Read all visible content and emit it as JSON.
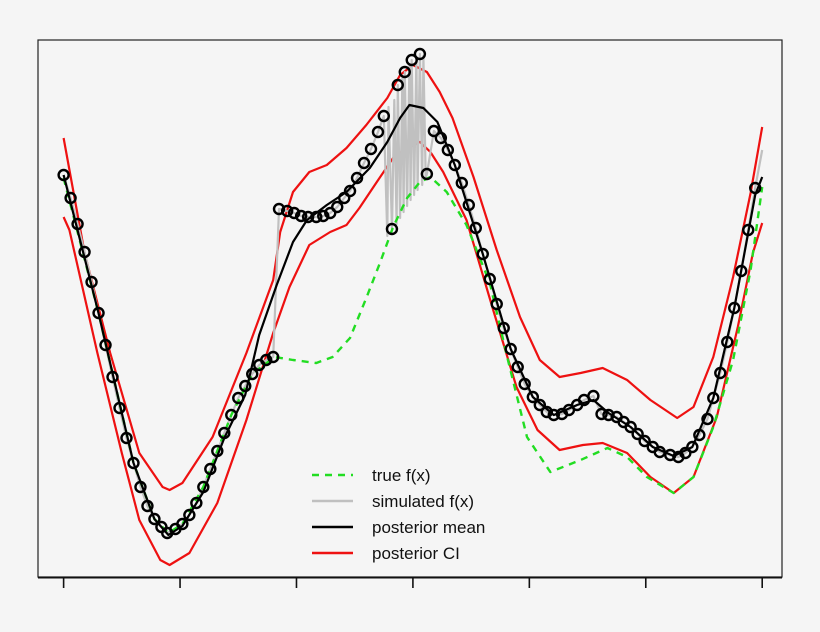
{
  "chart_data": {
    "type": "line",
    "title": "",
    "xlabel": "",
    "ylabel": "",
    "xlim": [
      -0.22,
      6.17
    ],
    "ylim": [
      -1.37,
      4.0
    ],
    "x_ticks": [
      0,
      1,
      2,
      3,
      4,
      5,
      6
    ],
    "x_tick_labels_shown": false,
    "y_ticks_shown": false,
    "grid": false,
    "legend_position": "bottom-center",
    "colors": {
      "true": "#22dd22",
      "simulated": "#c0c0c0",
      "mean": "#000000",
      "ci": "#ee1111",
      "points": "#000000",
      "background": "#f5f5f5"
    },
    "legend": [
      {
        "label": "true f(x)",
        "style": "dashed",
        "color": "#22dd22"
      },
      {
        "label": "simulated f(x)",
        "style": "solid",
        "color": "#c0c0c0"
      },
      {
        "label": "posterior mean",
        "style": "solid",
        "color": "#000000"
      },
      {
        "label": "posterior CI",
        "style": "solid",
        "color": "#ee1111"
      }
    ],
    "series": [
      {
        "name": "true f(x)",
        "x": [
          0,
          0.3,
          0.6,
          0.78,
          0.9,
          1.02,
          1.2,
          1.44,
          1.62,
          1.81,
          1.97,
          2.17,
          2.31,
          2.46,
          2.6,
          2.72,
          2.83,
          2.95,
          3.06,
          3.15,
          3.29,
          3.46,
          3.66,
          3.81,
          3.98,
          4.18,
          4.44,
          4.67,
          4.84,
          5.01,
          5.24,
          5.41,
          5.58,
          5.75,
          5.9,
          6.0
        ],
        "y": [
          2.62,
          1.27,
          -0.23,
          -0.79,
          -0.93,
          -0.84,
          -0.47,
          0.25,
          0.66,
          0.83,
          0.8,
          0.77,
          0.83,
          1.02,
          1.42,
          1.78,
          2.13,
          2.42,
          2.58,
          2.63,
          2.48,
          2.15,
          1.57,
          0.83,
          0.03,
          -0.32,
          -0.2,
          -0.08,
          -0.17,
          -0.37,
          -0.53,
          -0.37,
          0.13,
          0.8,
          1.7,
          2.53
        ]
      },
      {
        "name": "simulated f(x)",
        "x": [
          0,
          0.06,
          0.12,
          0.18,
          0.24,
          0.3,
          0.36,
          0.42,
          0.48,
          0.54,
          0.6,
          0.66,
          0.72,
          0.78,
          0.84,
          0.89,
          0.96,
          1.02,
          1.08,
          1.14,
          1.2,
          1.26,
          1.32,
          1.38,
          1.44,
          1.5,
          1.56,
          1.62,
          1.68,
          1.74,
          1.8,
          1.85,
          1.92,
          1.98,
          2.04,
          2.1,
          2.17,
          2.23,
          2.29,
          2.35,
          2.41,
          2.46,
          2.52,
          2.58,
          2.64,
          2.7,
          2.75,
          2.78,
          2.79,
          2.82,
          2.84,
          2.86,
          2.87,
          2.89,
          2.91,
          2.92,
          2.93,
          2.95,
          2.97,
          2.98,
          2.99,
          3.01,
          3.03,
          3.04,
          3.06,
          3.08,
          3.09,
          3.11,
          3.12,
          3.18,
          3.24,
          3.3,
          3.36,
          3.42,
          3.48,
          3.54,
          3.6,
          3.66,
          3.72,
          3.78,
          3.84,
          3.9,
          3.96,
          4.03,
          4.09,
          4.15,
          4.21,
          4.28,
          4.34,
          4.41,
          4.47,
          4.55,
          4.62,
          4.68,
          4.75,
          4.81,
          4.87,
          4.93,
          4.99,
          5.06,
          5.12,
          5.21,
          5.28,
          5.34,
          5.4,
          5.46,
          5.53,
          5.58,
          5.64,
          5.7,
          5.76,
          5.82,
          5.88,
          5.94,
          6.0
        ],
        "y": [
          2.65,
          2.42,
          2.16,
          1.88,
          1.58,
          1.27,
          0.95,
          0.63,
          0.32,
          0.02,
          -0.23,
          -0.47,
          -0.66,
          -0.79,
          -0.87,
          -0.93,
          -0.89,
          -0.84,
          -0.75,
          -0.63,
          -0.47,
          -0.29,
          -0.11,
          0.07,
          0.25,
          0.42,
          0.54,
          0.66,
          0.75,
          0.8,
          0.83,
          2.31,
          2.29,
          2.27,
          2.24,
          2.23,
          2.23,
          2.24,
          2.27,
          2.33,
          2.42,
          2.49,
          2.62,
          2.77,
          2.91,
          3.08,
          3.24,
          2.04,
          3.33,
          2.11,
          3.4,
          2.16,
          3.55,
          2.22,
          3.62,
          2.28,
          3.68,
          2.34,
          3.74,
          2.4,
          3.8,
          2.45,
          3.83,
          2.5,
          3.86,
          2.55,
          3.84,
          2.62,
          2.66,
          3.09,
          3.02,
          2.9,
          2.75,
          2.57,
          2.35,
          2.12,
          1.86,
          1.61,
          1.36,
          1.12,
          0.91,
          0.73,
          0.56,
          0.43,
          0.35,
          0.28,
          0.25,
          0.26,
          0.3,
          0.35,
          0.4,
          0.44,
          0.26,
          0.25,
          0.23,
          0.18,
          0.13,
          0.06,
          -0.01,
          -0.07,
          -0.12,
          -0.15,
          -0.17,
          -0.13,
          -0.07,
          0.05,
          0.21,
          0.42,
          0.67,
          0.98,
          1.32,
          1.69,
          2.1,
          2.52,
          2.9
        ]
      },
      {
        "name": "posterior mean",
        "x": [
          0,
          0.3,
          0.6,
          0.78,
          0.9,
          1.02,
          1.2,
          1.38,
          1.56,
          1.68,
          1.83,
          1.97,
          2.09,
          2.26,
          2.43,
          2.63,
          2.78,
          2.89,
          2.97,
          3.09,
          3.21,
          3.36,
          3.6,
          3.84,
          4.03,
          4.21,
          4.41,
          4.55,
          4.68,
          4.87,
          5.06,
          5.24,
          5.4,
          5.58,
          5.76,
          5.94,
          6.0
        ],
        "y": [
          2.65,
          1.27,
          -0.23,
          -0.79,
          -0.95,
          -0.86,
          -0.52,
          0.02,
          0.45,
          1.05,
          1.55,
          1.98,
          2.2,
          2.35,
          2.48,
          2.72,
          2.98,
          3.22,
          3.35,
          3.32,
          3.18,
          2.75,
          1.86,
          0.91,
          0.43,
          0.25,
          0.35,
          0.4,
          0.27,
          0.13,
          -0.07,
          -0.16,
          -0.07,
          0.42,
          1.32,
          2.45,
          2.63
        ]
      },
      {
        "name": "posterior CI upper",
        "x": [
          0,
          0.18,
          0.4,
          0.65,
          0.85,
          0.91,
          1.02,
          1.28,
          1.57,
          1.8,
          1.86,
          1.97,
          2.11,
          2.26,
          2.43,
          2.6,
          2.78,
          2.89,
          3.0,
          3.12,
          3.23,
          3.34,
          3.52,
          3.72,
          3.92,
          4.09,
          4.26,
          4.44,
          4.63,
          4.84,
          5.04,
          5.27,
          5.41,
          5.58,
          5.75,
          5.9,
          6.0
        ],
        "y": [
          3.02,
          1.87,
          0.87,
          -0.13,
          -0.47,
          -0.5,
          -0.43,
          0.03,
          0.87,
          1.6,
          2.08,
          2.48,
          2.68,
          2.75,
          2.92,
          3.15,
          3.42,
          3.65,
          3.75,
          3.68,
          3.48,
          3.22,
          2.63,
          1.9,
          1.23,
          0.8,
          0.63,
          0.67,
          0.72,
          0.6,
          0.4,
          0.22,
          0.33,
          0.83,
          1.63,
          2.47,
          3.13
        ]
      },
      {
        "name": "posterior CI lower",
        "x": [
          0,
          0.05,
          0.29,
          0.5,
          0.65,
          0.83,
          0.91,
          1.08,
          1.32,
          1.57,
          1.8,
          1.94,
          2.11,
          2.29,
          2.43,
          2.54,
          2.69,
          2.83,
          2.95,
          3.06,
          3.15,
          3.26,
          3.46,
          3.69,
          3.89,
          4.07,
          4.26,
          4.46,
          4.63,
          4.84,
          5.04,
          5.24,
          5.41,
          5.61,
          5.79,
          5.92,
          6.0
        ],
        "y": [
          2.23,
          2.1,
          0.87,
          -0.13,
          -0.8,
          -1.2,
          -1.25,
          -1.13,
          -0.63,
          0.2,
          1.07,
          1.53,
          1.95,
          2.08,
          2.15,
          2.32,
          2.58,
          2.82,
          2.92,
          2.98,
          2.88,
          2.68,
          2.2,
          1.3,
          0.53,
          0.1,
          -0.1,
          -0.05,
          -0.03,
          -0.13,
          -0.37,
          -0.53,
          -0.37,
          0.23,
          1.13,
          1.87,
          2.17
        ]
      }
    ],
    "points": {
      "x": [
        0,
        0.06,
        0.12,
        0.18,
        0.24,
        0.3,
        0.36,
        0.42,
        0.48,
        0.54,
        0.6,
        0.66,
        0.72,
        0.78,
        0.84,
        0.89,
        0.96,
        1.02,
        1.08,
        1.14,
        1.2,
        1.26,
        1.32,
        1.38,
        1.44,
        1.5,
        1.56,
        1.62,
        1.68,
        1.74,
        1.8,
        1.85,
        1.92,
        1.98,
        2.04,
        2.1,
        2.17,
        2.23,
        2.29,
        2.35,
        2.41,
        2.46,
        2.52,
        2.58,
        2.64,
        2.7,
        2.75,
        2.82,
        2.87,
        2.93,
        2.99,
        3.06,
        3.12,
        3.18,
        3.24,
        3.3,
        3.36,
        3.42,
        3.48,
        3.54,
        3.6,
        3.66,
        3.72,
        3.78,
        3.84,
        3.9,
        3.96,
        4.03,
        4.09,
        4.15,
        4.21,
        4.28,
        4.34,
        4.41,
        4.47,
        4.55,
        4.62,
        4.68,
        4.75,
        4.81,
        4.87,
        4.93,
        4.99,
        5.06,
        5.12,
        5.21,
        5.28,
        5.34,
        5.4,
        5.46,
        5.53,
        5.58,
        5.64,
        5.7,
        5.76,
        5.82,
        5.88,
        5.94
      ],
      "y": [
        2.65,
        2.42,
        2.16,
        1.88,
        1.58,
        1.27,
        0.95,
        0.63,
        0.32,
        0.02,
        -0.23,
        -0.47,
        -0.66,
        -0.79,
        -0.87,
        -0.93,
        -0.89,
        -0.84,
        -0.75,
        -0.63,
        -0.47,
        -0.29,
        -0.11,
        0.07,
        0.25,
        0.42,
        0.54,
        0.66,
        0.75,
        0.8,
        0.83,
        2.31,
        2.29,
        2.27,
        2.24,
        2.23,
        2.23,
        2.24,
        2.27,
        2.33,
        2.42,
        2.49,
        2.62,
        2.77,
        2.91,
        3.08,
        3.24,
        2.11,
        3.55,
        3.68,
        3.8,
        3.86,
        2.66,
        3.09,
        3.02,
        2.9,
        2.75,
        2.57,
        2.35,
        2.12,
        1.86,
        1.61,
        1.36,
        1.12,
        0.91,
        0.73,
        0.56,
        0.43,
        0.35,
        0.28,
        0.25,
        0.26,
        0.3,
        0.35,
        0.4,
        0.44,
        0.26,
        0.25,
        0.23,
        0.18,
        0.13,
        0.06,
        -0.01,
        -0.07,
        -0.12,
        -0.15,
        -0.17,
        -0.13,
        -0.07,
        0.05,
        0.21,
        0.42,
        0.67,
        0.98,
        1.32,
        1.69,
        2.1,
        2.52
      ]
    }
  }
}
